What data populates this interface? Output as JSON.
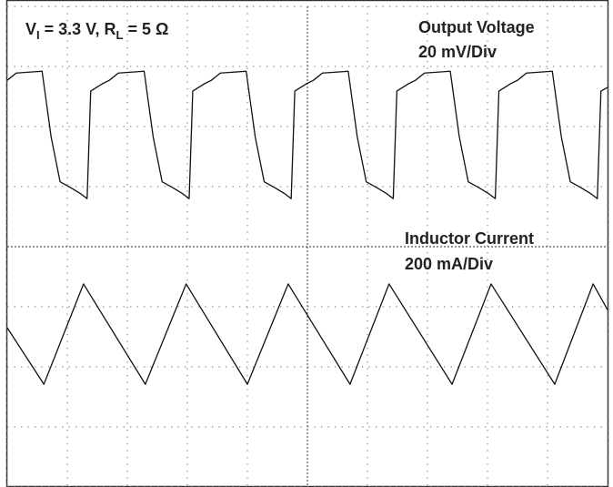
{
  "chart_data": {
    "type": "line",
    "title": [
      "V",
      "I",
      " = 3.3 V, R",
      "L",
      " = 5 Ω"
    ],
    "xlim": [
      0,
      10
    ],
    "ylim": [
      0,
      8
    ],
    "xticks": [
      0,
      1,
      2,
      3,
      4,
      5,
      6,
      7,
      8,
      9,
      10
    ],
    "yticks": [
      0,
      1,
      2,
      3,
      4,
      5,
      6,
      7,
      8
    ],
    "grid": true,
    "series": [
      {
        "name": "Output Voltage",
        "scale": "20 mV/Div",
        "color": "#111111",
        "x": [
          0,
          0.15,
          0.58,
          0.73,
          0.88,
          1.06,
          1.21,
          1.33,
          1.39,
          1.58,
          1.7,
          1.85,
          2.28,
          2.43,
          2.58,
          2.76,
          2.91,
          3.03,
          3.09,
          3.28,
          3.4,
          3.55,
          3.98,
          4.13,
          4.28,
          4.46,
          4.61,
          4.73,
          4.79,
          4.98,
          5.1,
          5.25,
          5.68,
          5.83,
          5.98,
          6.16,
          6.31,
          6.43,
          6.49,
          6.68,
          6.8,
          6.95,
          7.38,
          7.53,
          7.68,
          7.86,
          8.01,
          8.13,
          8.19,
          8.38,
          8.5,
          8.65,
          9.08,
          9.23,
          9.38,
          9.56,
          9.71,
          9.83,
          9.89,
          10
        ],
        "values": [
          6.77,
          6.89,
          6.92,
          5.83,
          5.08,
          4.98,
          4.89,
          4.8,
          6.59,
          6.71,
          6.77,
          6.89,
          6.92,
          5.83,
          5.08,
          4.98,
          4.89,
          4.8,
          6.59,
          6.71,
          6.77,
          6.89,
          6.92,
          5.83,
          5.08,
          4.98,
          4.89,
          4.8,
          6.59,
          6.71,
          6.77,
          6.89,
          6.92,
          5.83,
          5.08,
          4.98,
          4.89,
          4.8,
          6.59,
          6.71,
          6.77,
          6.89,
          6.92,
          5.83,
          5.08,
          4.98,
          4.89,
          4.8,
          6.59,
          6.71,
          6.77,
          6.89,
          6.92,
          5.83,
          5.08,
          4.98,
          4.89,
          4.8,
          6.59,
          6.65
        ]
      },
      {
        "name": "Inductor Current",
        "scale": "200 mA/Div",
        "color": "#111111",
        "x": [
          0,
          0.61,
          1.27,
          2.3,
          2.98,
          4.0,
          4.68,
          5.71,
          6.36,
          7.41,
          8.06,
          9.12,
          9.76,
          10
        ],
        "values": [
          2.65,
          1.71,
          3.38,
          1.71,
          3.38,
          1.71,
          3.38,
          1.71,
          3.38,
          1.71,
          3.38,
          1.71,
          3.38,
          2.95
        ]
      }
    ]
  }
}
